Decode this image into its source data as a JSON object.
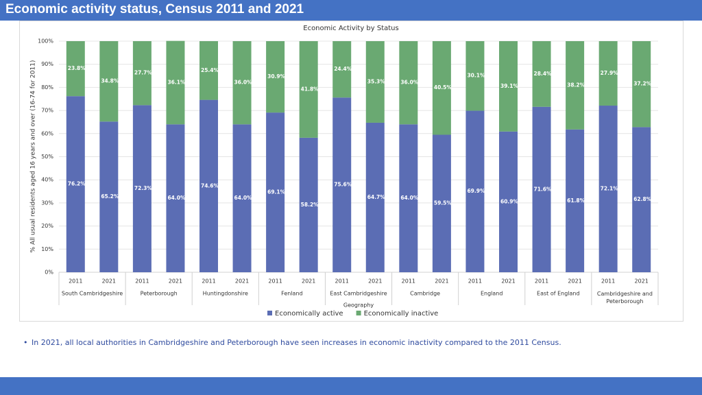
{
  "slide": {
    "title": "Economic activity status, Census 2011 and 2021",
    "bullet": "In 2021, all local authorities in Cambridgeshire and Peterborough have seen increases in economic inactivity compared to the 2011 Census."
  },
  "chart_data": {
    "type": "stacked_bar",
    "title": "Economic Activity by Status",
    "x_label": "Geography",
    "y_label": "% All usual residents aged 16 years and over (16-74 for 2011)",
    "categories": [
      "2011",
      "2021",
      "2011",
      "2021",
      "2011",
      "2021",
      "2011",
      "2021",
      "2011",
      "2021",
      "2011",
      "2021",
      "2011",
      "2021",
      "2011",
      "2021",
      "2011",
      "2021"
    ],
    "groups": [
      "South Cambridgeshire",
      "Peterborough",
      "Huntingdonshire",
      "Fenland",
      "East Cambridgeshire",
      "Cambridge",
      "England",
      "East of England",
      "Cambridgeshire and Peterborough"
    ],
    "series": [
      {
        "name": "Economically active",
        "color": "#5b6db4",
        "values": [
          76.2,
          65.2,
          72.3,
          64.0,
          74.6,
          64.0,
          69.1,
          58.2,
          75.6,
          64.7,
          64.0,
          59.5,
          69.9,
          60.9,
          71.6,
          61.8,
          72.1,
          62.8
        ],
        "value_labels": [
          "76.2%",
          "65.2%",
          "72.3%",
          "64.0%",
          "74.6%",
          "64.0%",
          "69.1%",
          "58.2%",
          "75.6%",
          "64.7%",
          "64.0%",
          "59.5%",
          "69.9%",
          "60.9%",
          "71.6%",
          "61.8%",
          "72.1%",
          "62.8%"
        ]
      },
      {
        "name": "Economically inactive",
        "color": "#6aa972",
        "values": [
          23.8,
          34.8,
          27.7,
          36.1,
          25.4,
          36.0,
          30.9,
          41.8,
          24.4,
          35.3,
          36.0,
          40.5,
          30.1,
          39.1,
          28.4,
          38.2,
          27.9,
          37.2
        ],
        "value_labels": [
          "23.8%",
          "34.8%",
          "27.7%",
          "36.1%",
          "25.4%",
          "36.0%",
          "30.9%",
          "41.8%",
          "24.4%",
          "35.3%",
          "36.0%",
          "40.5%",
          "30.1%",
          "39.1%",
          "28.4%",
          "38.2%",
          "27.9%",
          "37.2%"
        ]
      }
    ],
    "ylim": [
      0,
      100
    ],
    "yticks": [
      {
        "value": 0,
        "label": "0%"
      },
      {
        "value": 10,
        "label": "10%"
      },
      {
        "value": 20,
        "label": "20%"
      },
      {
        "value": 30,
        "label": "30%"
      },
      {
        "value": 40,
        "label": "40%"
      },
      {
        "value": 50,
        "label": "50%"
      },
      {
        "value": 60,
        "label": "60%"
      },
      {
        "value": 70,
        "label": "70%"
      },
      {
        "value": 80,
        "label": "80%"
      },
      {
        "value": 90,
        "label": "90%"
      },
      {
        "value": 100,
        "label": "100%"
      }
    ],
    "grid": true
  }
}
